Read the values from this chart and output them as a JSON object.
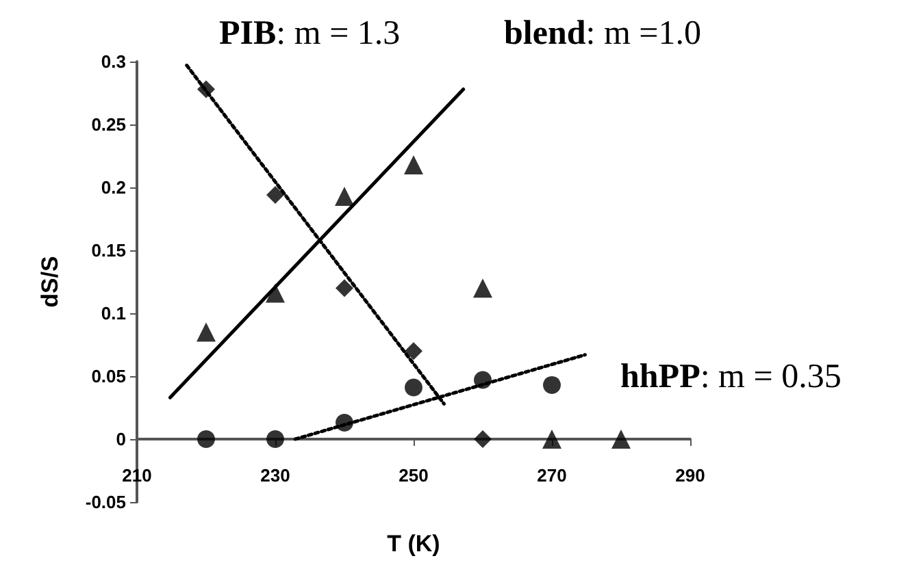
{
  "chart_data": {
    "type": "scatter",
    "xlabel": "T (K)",
    "ylabel": "dS/S",
    "xlim": [
      210,
      290
    ],
    "xticks": [
      210,
      230,
      250,
      270,
      290
    ],
    "ylim": [
      -0.05,
      0.3
    ],
    "yticks": [
      -0.05,
      0,
      0.05,
      0.1,
      0.15,
      0.2,
      0.25,
      0.3
    ],
    "grid": false,
    "annotations": [
      "PIB: m = 1.3",
      "blend: m =1.0",
      "hhPP: m = 0.35"
    ],
    "series": [
      {
        "marker": "diamond",
        "color": "#000000",
        "x": [
          220,
          230,
          240,
          250,
          260
        ],
        "values": [
          0.278,
          0.194,
          0.12,
          0.07,
          0
        ]
      },
      {
        "marker": "triangle",
        "color": "#000000",
        "x": [
          220,
          230,
          240,
          250,
          260,
          270,
          280
        ],
        "values": [
          0.085,
          0.116,
          0.193,
          0.218,
          0.12,
          0,
          0
        ]
      },
      {
        "marker": "circle",
        "color": "#000000",
        "x": [
          220,
          230,
          240,
          250,
          260,
          270
        ],
        "values": [
          0,
          0,
          0.013,
          0.041,
          0.047,
          0.043
        ]
      },
      {
        "type": "line",
        "marker": "none",
        "line_style": "dotted",
        "color": "#000000",
        "x": [
          217.2,
          254.4
        ],
        "values": [
          0.297,
          0.028
        ]
      },
      {
        "type": "line",
        "marker": "none",
        "line_style": "solid",
        "color": "#000000",
        "x": [
          214.8,
          257.2
        ],
        "values": [
          0.033,
          0.278
        ]
      },
      {
        "type": "line",
        "marker": "none",
        "line_style": "dotted",
        "color": "#000000",
        "x": [
          232.9,
          274.8
        ],
        "values": [
          0,
          0.067
        ]
      }
    ]
  }
}
